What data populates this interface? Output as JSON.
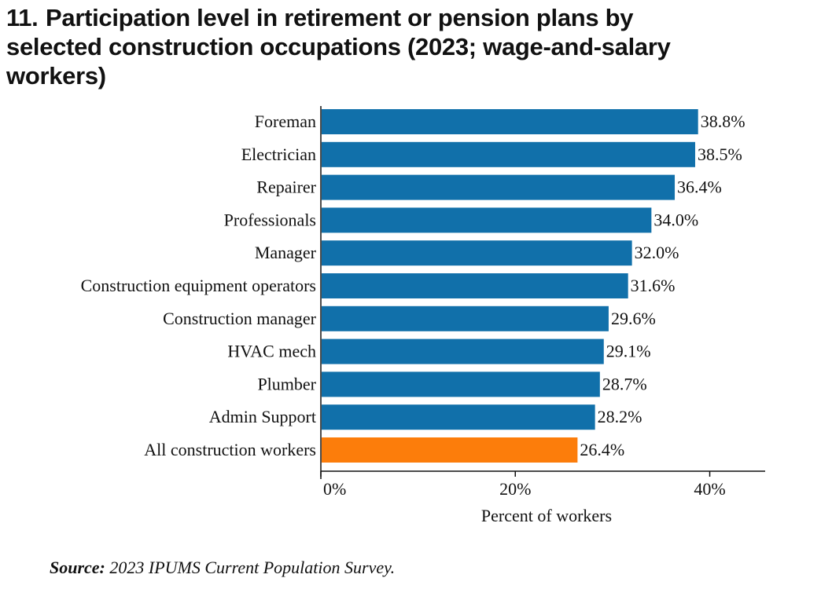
{
  "title_number": "11.",
  "title": "Participation level in retirement or pension plans by selected construction occupations (2023; wage-and-salary workers)",
  "source_label": "Source:",
  "source_text": "2023 IPUMS Current Population Survey.",
  "colors": {
    "bar": "#1170aa",
    "highlight": "#fc7d0b"
  },
  "chart_data": {
    "type": "bar",
    "orientation": "horizontal",
    "categories": [
      "Foreman",
      "Electrician",
      "Repairer",
      "Professionals",
      "Manager",
      "Construction equipment operators",
      "Construction manager",
      "HVAC mech",
      "Plumber",
      "Admin Support",
      "All construction workers"
    ],
    "values": [
      38.8,
      38.5,
      36.4,
      34.0,
      32.0,
      31.6,
      29.6,
      29.1,
      28.7,
      28.2,
      26.4
    ],
    "data_labels": [
      "38.8%",
      "38.5%",
      "36.4%",
      "34.0%",
      "32.0%",
      "31.6%",
      "29.6%",
      "29.1%",
      "28.7%",
      "28.2%",
      "26.4%"
    ],
    "highlight_category": "All construction workers",
    "xlabel": "Percent of workers",
    "ylabel": "",
    "xlim": [
      0,
      45.7
    ],
    "xticks": [
      0,
      20,
      40
    ],
    "xtick_labels": [
      "0%",
      "20%",
      "40%"
    ],
    "grid": false,
    "legend": "none"
  }
}
